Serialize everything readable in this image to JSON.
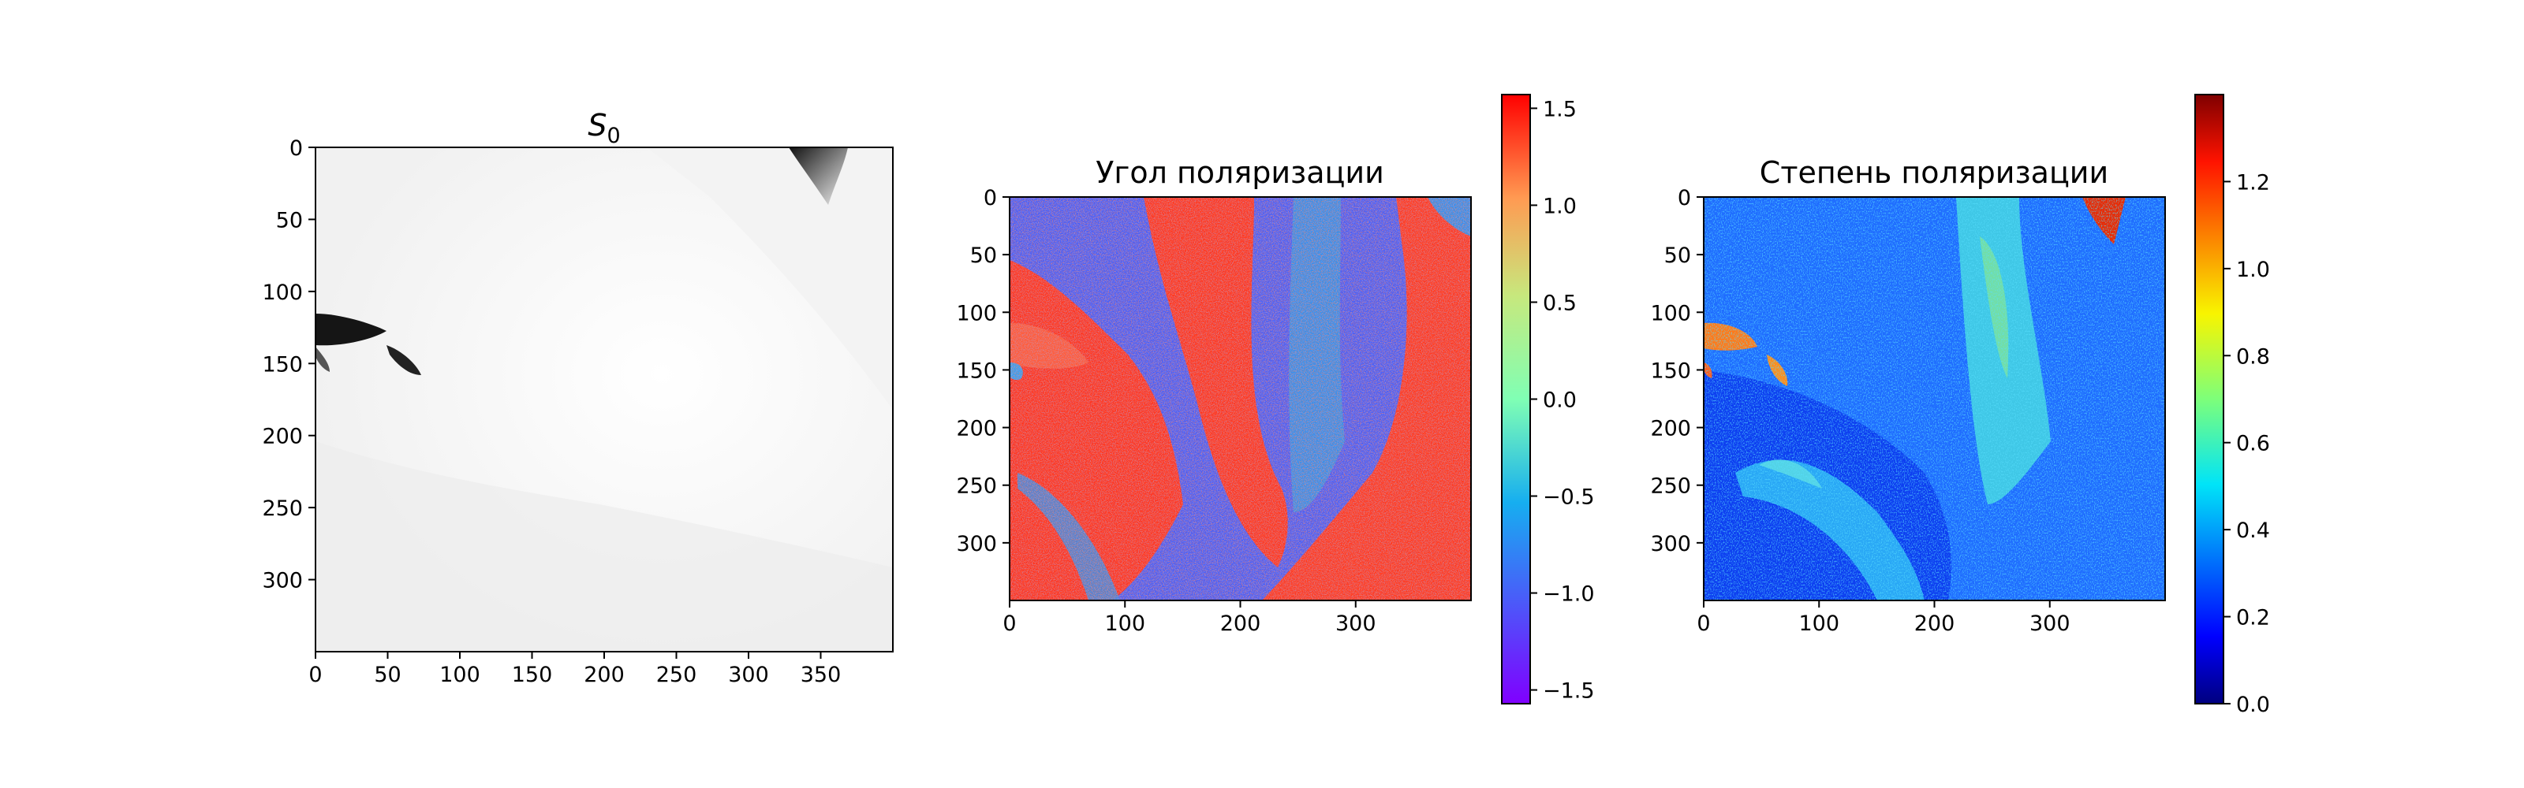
{
  "chart_data": [
    {
      "type": "heatmap",
      "id": "s0",
      "title": "S",
      "title_subscript": "0",
      "colormap": "gray_r",
      "xlim": [
        0,
        400
      ],
      "ylim": [
        350,
        0
      ],
      "xticks": [
        0,
        50,
        100,
        150,
        200,
        250,
        300,
        350
      ],
      "yticks": [
        0,
        50,
        100,
        150,
        200,
        250,
        300
      ],
      "xtick_labels": [
        "0",
        "50",
        "100",
        "150",
        "200",
        "250",
        "300",
        "350"
      ],
      "ytick_labels": [
        "0",
        "50",
        "100",
        "150",
        "200",
        "250",
        "300"
      ],
      "colorbar": null
    },
    {
      "type": "heatmap",
      "id": "angle",
      "title": "Угол поляризации",
      "colormap": "rainbow",
      "xlim": [
        0,
        400
      ],
      "ylim": [
        350,
        0
      ],
      "xticks": [
        0,
        100,
        200,
        300
      ],
      "yticks": [
        0,
        50,
        100,
        150,
        200,
        250,
        300
      ],
      "xtick_labels": [
        "0",
        "100",
        "200",
        "300"
      ],
      "ytick_labels": [
        "0",
        "50",
        "100",
        "150",
        "200",
        "250",
        "300"
      ],
      "colorbar": {
        "range": [
          -1.5708,
          1.5708
        ],
        "ticks": [
          -1.5,
          -1.0,
          -0.5,
          0.0,
          0.5,
          1.0,
          1.5
        ],
        "tick_labels": [
          "−1.5",
          "−1.0",
          "−0.5",
          "0.0",
          "0.5",
          "1.0",
          "1.5"
        ]
      }
    },
    {
      "type": "heatmap",
      "id": "degree",
      "title": "Степень поляризации",
      "colormap": "jet",
      "xlim": [
        0,
        400
      ],
      "ylim": [
        350,
        0
      ],
      "xticks": [
        0,
        100,
        200,
        300
      ],
      "yticks": [
        0,
        50,
        100,
        150,
        200,
        250,
        300
      ],
      "xtick_labels": [
        "0",
        "100",
        "200",
        "300"
      ],
      "ytick_labels": [
        "0",
        "50",
        "100",
        "150",
        "200",
        "250",
        "300"
      ],
      "colorbar": {
        "range": [
          0,
          1.4
        ],
        "ticks": [
          0.0,
          0.2,
          0.4,
          0.6,
          0.8,
          1.0,
          1.2
        ],
        "tick_labels": [
          "0.0",
          "0.2",
          "0.4",
          "0.6",
          "0.8",
          "1.0",
          "1.2"
        ]
      }
    }
  ]
}
